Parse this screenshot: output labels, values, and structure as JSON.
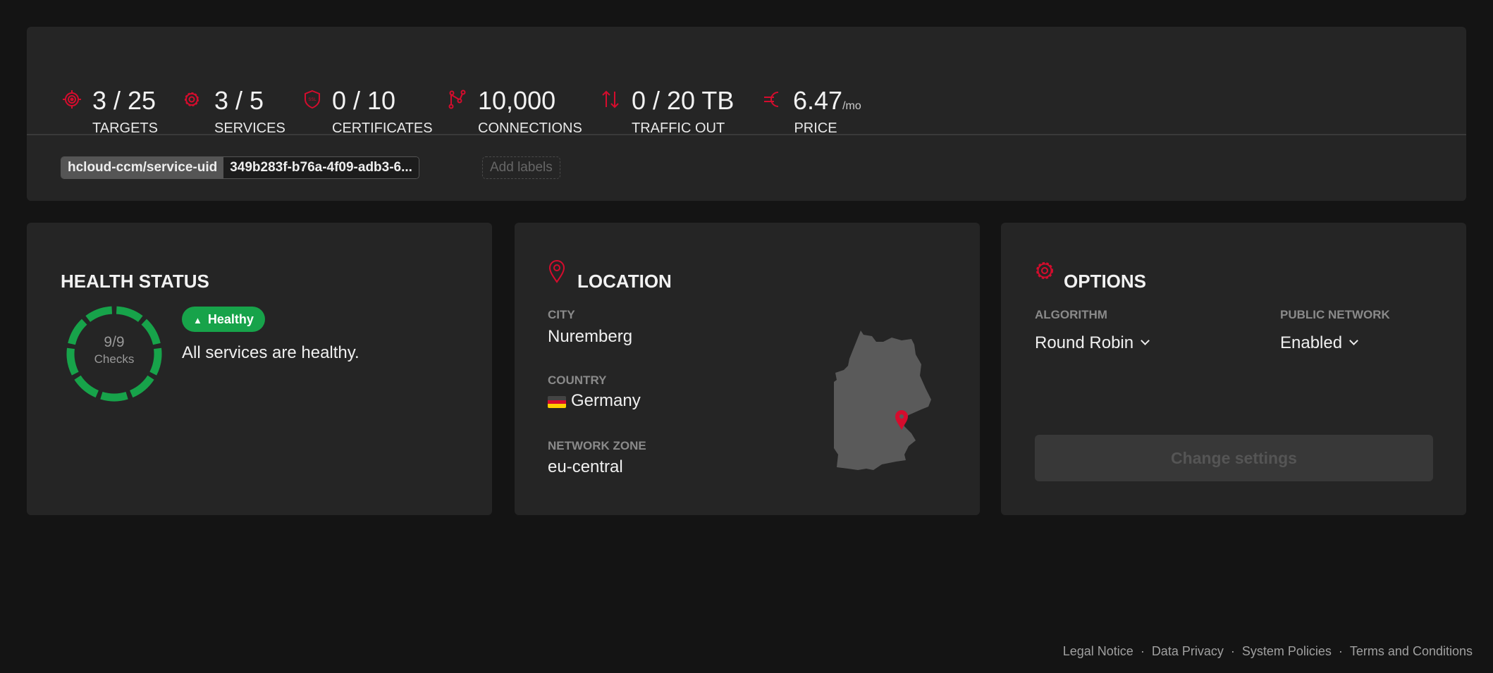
{
  "summary": {
    "stats": [
      {
        "icon": "target-icon",
        "value": "3 / 25",
        "label": "TARGETS"
      },
      {
        "icon": "gear-icon",
        "value": "3 / 5",
        "label": "SERVICES"
      },
      {
        "icon": "ssl-shield-icon",
        "value": "0 / 10",
        "label": "CERTIFICATES"
      },
      {
        "icon": "connections-icon",
        "value": "10,000",
        "label": "CONNECTIONS"
      },
      {
        "icon": "traffic-arrows-icon",
        "value": "0 / 20 TB",
        "label": "TRAFFIC OUT"
      },
      {
        "icon": "euro-icon",
        "value": "6.47",
        "unit": "/mo",
        "label": "PRICE"
      }
    ],
    "label_key": "hcloud-ccm/service-uid",
    "label_value": "349b283f-b76a-4f09-adb3-6...",
    "add_labels": "Add labels"
  },
  "health": {
    "title": "HEALTH STATUS",
    "checks": "9/9",
    "checks_label": "Checks",
    "checks_passed": 9,
    "checks_total": 9,
    "badge": "Healthy",
    "message": "All services are healthy."
  },
  "location": {
    "title": "LOCATION",
    "city_label": "CITY",
    "city": "Nuremberg",
    "country_label": "COUNTRY",
    "country": "Germany",
    "zone_label": "NETWORK ZONE",
    "zone": "eu-central"
  },
  "options": {
    "title": "OPTIONS",
    "algorithm_label": "ALGORITHM",
    "algorithm": "Round Robin",
    "network_label": "PUBLIC NETWORK",
    "network": "Enabled",
    "button": "Change settings"
  },
  "footer": [
    "Legal Notice",
    "Data Privacy",
    "System Policies",
    "Terms and Conditions"
  ],
  "colors": {
    "accent": "#d50c2d",
    "healthy": "#17a34a",
    "background": "#141414",
    "card": "#252525"
  }
}
